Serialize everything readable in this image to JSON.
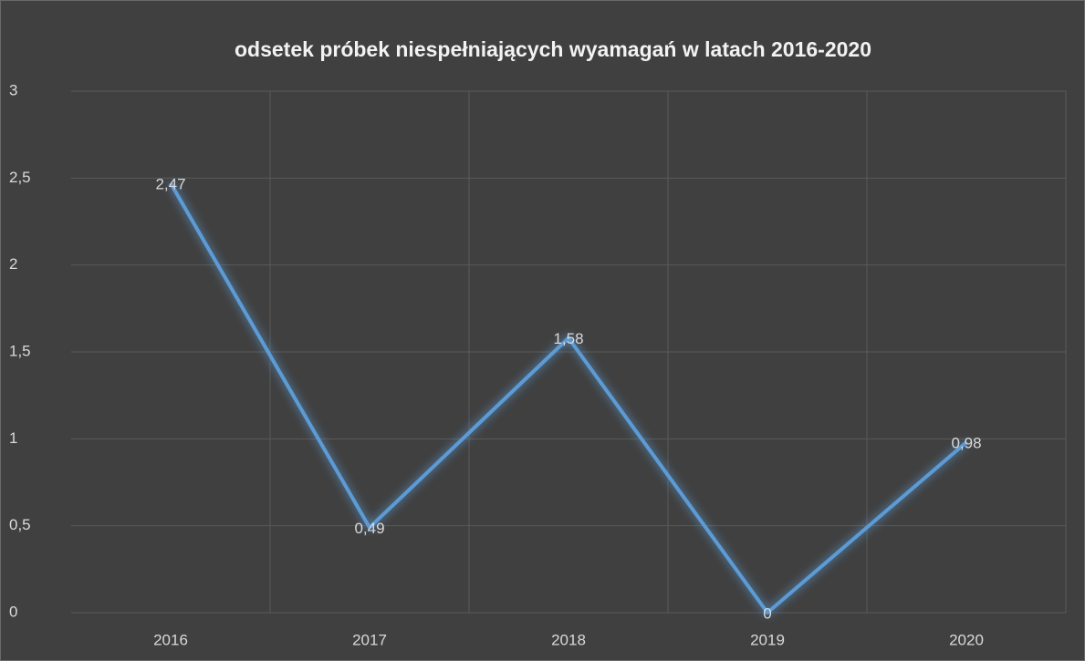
{
  "chart_data": {
    "type": "line",
    "title": "odsetek próbek niespełniających wyamagań w latach 2016-2020",
    "categories": [
      "2016",
      "2017",
      "2018",
      "2019",
      "2020"
    ],
    "values": [
      2.47,
      0.49,
      1.58,
      0,
      0.98
    ],
    "value_labels": [
      "2,47",
      "0,49",
      "1,58",
      "0",
      "0,98"
    ],
    "color": "#5b9bd5",
    "ylim": [
      0,
      3
    ],
    "yticks": [
      0,
      {
        "value": 0.5,
        "label": "0,5"
      },
      1,
      {
        "value": 1.5,
        "label": "1,5"
      },
      2,
      {
        "value": 2.5,
        "label": "2,5"
      },
      3
    ],
    "grid": true
  }
}
